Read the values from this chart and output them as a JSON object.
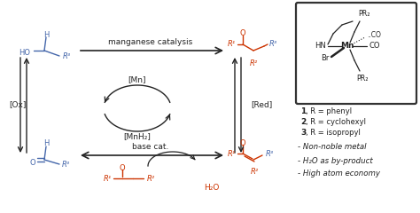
{
  "blue": "#4466aa",
  "red": "#cc3300",
  "black": "#222222",
  "top_label": "manganese catalysis",
  "bottom_label": "base cat.",
  "ox_label": "[Ox]",
  "red_label": "[Red]",
  "mn_label": "[Mn]",
  "mnh2_label": "[MnH₂]",
  "bullet1": "- Non-noble metal",
  "bullet2": "- H₂O as by-product",
  "bullet3": "- High atom economy",
  "cat1": "1, R = phenyl",
  "cat2": "2, R = cyclohexyl",
  "cat3": "3, R = isopropyl",
  "figw": 4.74,
  "figh": 2.4,
  "dpi": 100
}
